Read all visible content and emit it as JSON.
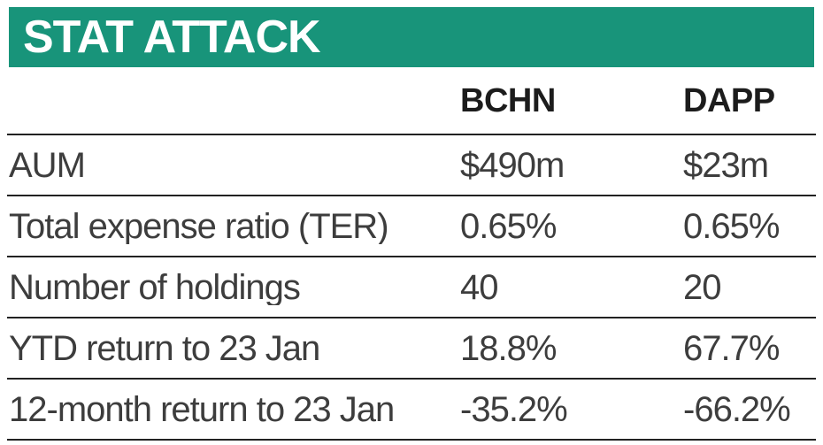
{
  "title_bar": {
    "title": "STAT ATTACK"
  },
  "table": {
    "column_headers": [
      "BCHN",
      "DAPP"
    ],
    "rows": [
      {
        "label": "AUM",
        "bchn": "$490m",
        "dapp": "$23m"
      },
      {
        "label": "Total expense ratio (TER)",
        "bchn": "0.65%",
        "dapp": "0.65%"
      },
      {
        "label": "Number of holdings",
        "bchn": "40",
        "dapp": "20"
      },
      {
        "label": "YTD return to 23 Jan",
        "bchn": "18.8%",
        "dapp": "67.7%"
      },
      {
        "label": "12-month return to 23 Jan",
        "bchn": "-35.2%",
        "dapp": "-66.2%"
      }
    ]
  },
  "chart_data": {
    "type": "table",
    "title": "STAT ATTACK",
    "columns": [
      "",
      "BCHN",
      "DAPP"
    ],
    "rows": [
      [
        "AUM",
        "$490m",
        "$23m"
      ],
      [
        "Total expense ratio (TER)",
        "0.65%",
        "0.65%"
      ],
      [
        "Number of holdings",
        "40",
        "20"
      ],
      [
        "YTD return to 23 Jan",
        "18.8%",
        "67.7%"
      ],
      [
        "12-month return to 23 Jan",
        "-35.2%",
        "-66.2%"
      ]
    ]
  },
  "colors": {
    "accent_green": "#18947a",
    "rule": "#222222",
    "header_text": "#1c1c1c",
    "body_text": "#3d3d3d",
    "title_text": "#ffffff"
  }
}
